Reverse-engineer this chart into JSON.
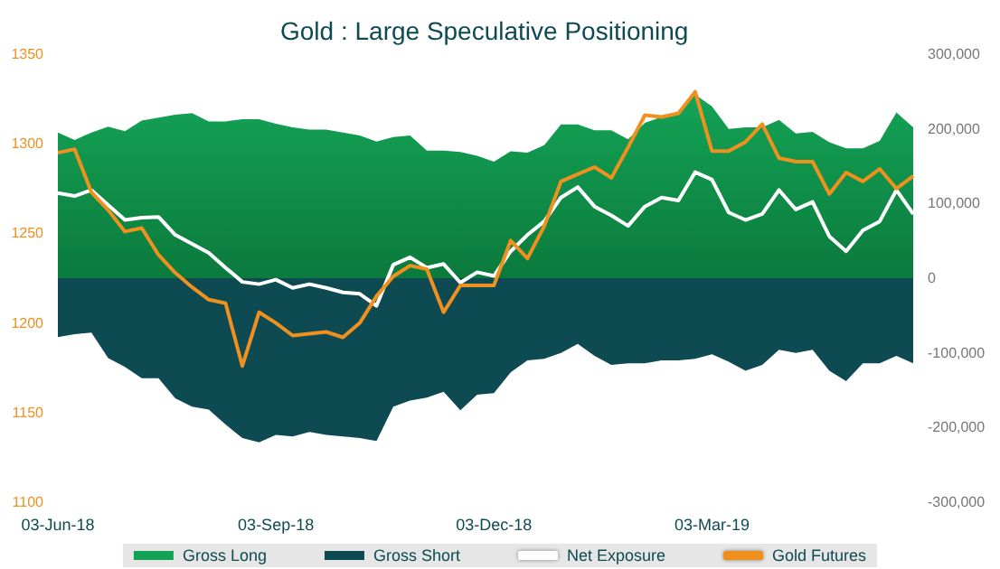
{
  "chart_data": {
    "type": "line",
    "title": "Gold : Large Speculative Positioning",
    "categories": [
      "03-Jun-18",
      null,
      null,
      null,
      null,
      null,
      null,
      null,
      null,
      null,
      null,
      null,
      null,
      "03-Sep-18",
      null,
      null,
      null,
      null,
      null,
      null,
      null,
      null,
      null,
      null,
      null,
      null,
      "03-Dec-18",
      null,
      null,
      null,
      null,
      null,
      null,
      null,
      null,
      null,
      null,
      null,
      null,
      "03-Mar-19",
      null,
      null,
      null,
      null,
      null,
      null,
      null,
      null,
      null,
      null,
      null,
      null
    ],
    "series": [
      {
        "name": "Gross Long",
        "type": "area",
        "axis": "y2",
        "color": "#14a356",
        "values": [
          195000,
          185000,
          195000,
          203000,
          197000,
          211000,
          215000,
          219000,
          221000,
          210000,
          210000,
          213000,
          213000,
          207000,
          202000,
          199000,
          199000,
          195000,
          191000,
          183000,
          189000,
          191000,
          171000,
          171000,
          169000,
          164000,
          156000,
          170000,
          168000,
          178000,
          206000,
          206000,
          198000,
          198000,
          186000,
          208000,
          216000,
          220000,
          246000,
          230000,
          200000,
          202000,
          202000,
          212000,
          194000,
          196000,
          182000,
          174000,
          174000,
          184000,
          222000,
          202000
        ]
      },
      {
        "name": "Gross Short",
        "type": "area",
        "axis": "y2",
        "color": "#0d4a52",
        "values": [
          -79000,
          -75000,
          -73000,
          -107000,
          -119000,
          -134000,
          -134000,
          -161000,
          -172000,
          -176000,
          -196000,
          -214000,
          -220000,
          -210000,
          -212000,
          -206000,
          -210000,
          -212000,
          -214000,
          -218000,
          -172000,
          -164000,
          -160000,
          -152000,
          -177000,
          -156000,
          -154000,
          -126000,
          -110000,
          -108000,
          -100000,
          -88000,
          -104000,
          -116000,
          -114000,
          -114000,
          -110000,
          -110000,
          -108000,
          -102000,
          -112000,
          -124000,
          -116000,
          -96000,
          -100000,
          -96000,
          -124000,
          -138000,
          -114000,
          -114000,
          -104000,
          -114000
        ]
      },
      {
        "name": "Net Exposure",
        "axis": "y2",
        "color": "#ffffff",
        "values": [
          114000,
          110000,
          118000,
          98000,
          78000,
          81000,
          82000,
          58000,
          46000,
          34000,
          14000,
          -5000,
          -8000,
          -2000,
          -13000,
          -8000,
          -13000,
          -19000,
          -21000,
          -37000,
          18000,
          28000,
          14000,
          19000,
          -6000,
          8000,
          3000,
          36000,
          58000,
          76000,
          108000,
          122000,
          96000,
          84000,
          70000,
          96000,
          108000,
          104000,
          142000,
          132000,
          88000,
          78000,
          86000,
          118000,
          92000,
          102000,
          56000,
          36000,
          64000,
          76000,
          118000,
          86000
        ]
      },
      {
        "name": "Gold Futures",
        "axis": "y",
        "color": "#f0901e",
        "values": [
          1295,
          1297,
          1273,
          1263,
          1251,
          1253,
          1238,
          1228,
          1220,
          1213,
          1211,
          1176,
          1206,
          1200,
          1193,
          1194,
          1195,
          1192,
          1200,
          1215,
          1226,
          1232,
          1230,
          1206,
          1221,
          1221,
          1221,
          1246,
          1236,
          1254,
          1279,
          1283,
          1287,
          1281,
          1298,
          1316,
          1315,
          1317,
          1329,
          1296,
          1296,
          1301,
          1311,
          1292,
          1290,
          1290,
          1272,
          1284,
          1279,
          1286,
          1275,
          1282
        ]
      }
    ],
    "ylim": [
      1100,
      1350
    ],
    "yticks": [
      1100,
      1150,
      1200,
      1250,
      1300,
      1350
    ],
    "y2lim": [
      -300000,
      300000
    ],
    "y2ticks": [
      {
        "value": -300000,
        "label": "-300,000"
      },
      {
        "value": -200000,
        "label": "-200,000"
      },
      {
        "value": -100000,
        "label": "-100,000"
      },
      {
        "value": 0,
        "label": "0"
      },
      {
        "value": 100000,
        "label": "100,000"
      },
      {
        "value": 200000,
        "label": "200,000"
      },
      {
        "value": 300000,
        "label": "300,000"
      }
    ],
    "legend": "bottom",
    "marker": "none",
    "grid": false
  }
}
